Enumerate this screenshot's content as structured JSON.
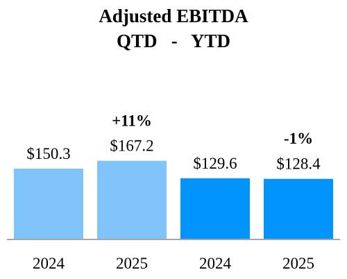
{
  "chart_data": {
    "type": "bar",
    "title": "Adjusted EBITDA",
    "subtitle": "QTD   -   YTD",
    "categories": [
      "2024",
      "2025",
      "2024",
      "2025"
    ],
    "values": [
      150.3,
      167.2,
      129.6,
      128.4
    ],
    "value_labels": [
      "$150.3",
      "$167.2",
      "$129.6",
      "$128.4"
    ],
    "groups": [
      {
        "name": "QTD",
        "category_indices": [
          0,
          1
        ],
        "change_label": "+11%"
      },
      {
        "name": "YTD",
        "category_indices": [
          2,
          3
        ],
        "change_label": "-1%"
      }
    ],
    "colors": [
      "#80c4fc",
      "#80c4fc",
      "#0094fc",
      "#0094fc"
    ],
    "axis_color": "#a6a6a6",
    "ylim": [
      0,
      200
    ],
    "grid": false,
    "legend": "none"
  }
}
